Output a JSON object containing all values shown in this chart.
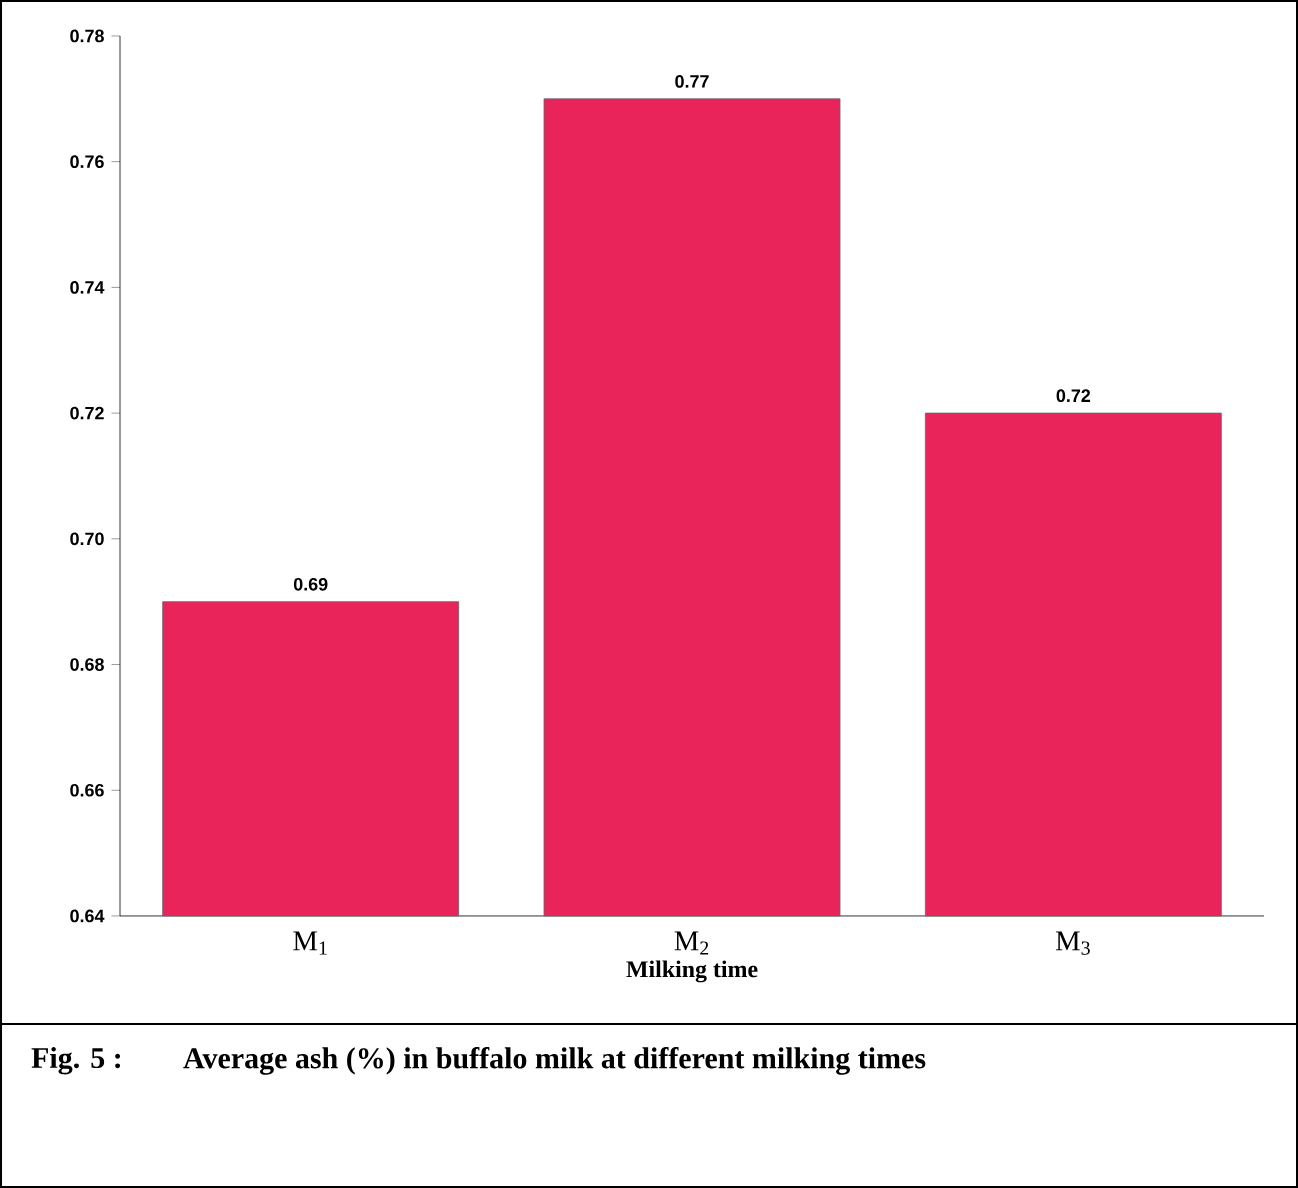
{
  "chart_data": {
    "type": "bar",
    "xlabel": "Milking time",
    "categories": [
      "M$_{1}$",
      "M$_{2}$",
      "M$_{3}$"
    ],
    "values": [
      0.69,
      0.77,
      0.72
    ],
    "color": "#e8245a",
    "ylim": [
      0.64,
      0.78
    ],
    "yticks": [
      0.64,
      0.66,
      0.68,
      {
        "value": 0.7,
        "label": "0.70"
      },
      0.72,
      0.74,
      0.76,
      0.78
    ],
    "data_labels": true,
    "annotations": [
      "Fig. 5 :",
      "Average ash (%) in buffalo milk at different milking times"
    ]
  }
}
